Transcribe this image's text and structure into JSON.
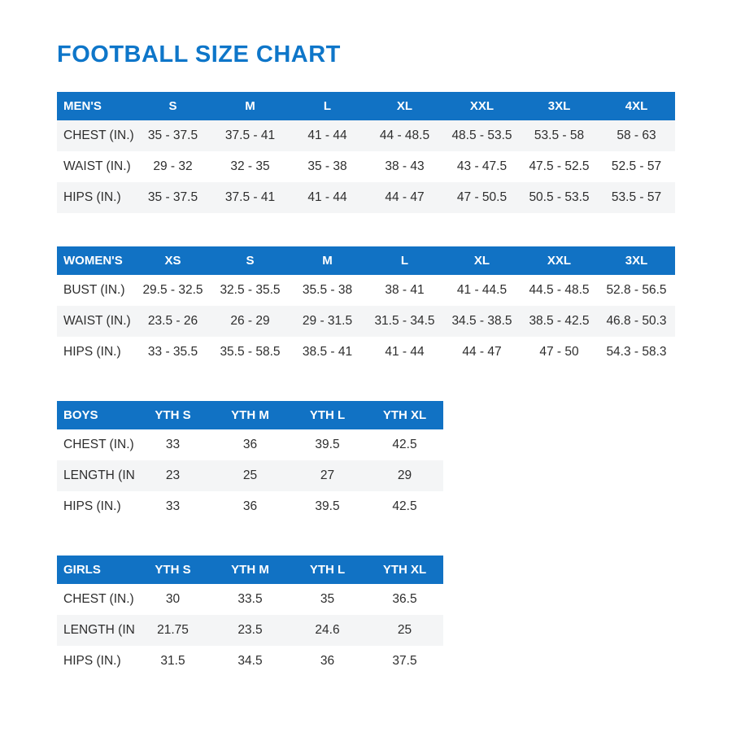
{
  "page": {
    "title": "FOOTBALL SIZE CHART"
  },
  "colors": {
    "accent_blue": "#1172C4",
    "title_blue": "#0E76C9",
    "stripe_gray": "#F4F5F6",
    "text_dark": "#2E2E2E"
  },
  "tables": [
    {
      "id": "mens",
      "label": "MEN'S",
      "columns": [
        "S",
        "M",
        "L",
        "XL",
        "XXL",
        "3XL",
        "4XL"
      ],
      "rows": [
        {
          "label": "CHEST (IN.)",
          "shaded": true,
          "values": [
            "35 - 37.5",
            "37.5 - 41",
            "41 - 44",
            "44 - 48.5",
            "48.5 - 53.5",
            "53.5 - 58",
            "58 - 63"
          ]
        },
        {
          "label": "WAIST (IN.)",
          "shaded": false,
          "values": [
            "29 - 32",
            "32 - 35",
            "35 - 38",
            "38 - 43",
            "43 - 47.5",
            "47.5 - 52.5",
            "52.5 - 57"
          ]
        },
        {
          "label": "HIPS (IN.)",
          "shaded": true,
          "values": [
            "35 - 37.5",
            "37.5 - 41",
            "41 - 44",
            "44 - 47",
            "47 - 50.5",
            "50.5 - 53.5",
            "53.5 - 57"
          ]
        }
      ]
    },
    {
      "id": "womens",
      "label": "WOMEN'S",
      "columns": [
        "XS",
        "S",
        "M",
        "L",
        "XL",
        "XXL",
        "3XL"
      ],
      "rows": [
        {
          "label": "BUST (IN.)",
          "shaded": false,
          "values": [
            "29.5 - 32.5",
            "32.5 - 35.5",
            "35.5 - 38",
            "38 - 41",
            "41 - 44.5",
            "44.5 - 48.5",
            "52.8 - 56.5"
          ]
        },
        {
          "label": "WAIST (IN.)",
          "shaded": true,
          "values": [
            "23.5 - 26",
            "26 - 29",
            "29 - 31.5",
            "31.5 - 34.5",
            "34.5 - 38.5",
            "38.5 - 42.5",
            "46.8 - 50.3"
          ]
        },
        {
          "label": "HIPS (IN.)",
          "shaded": false,
          "values": [
            "33 - 35.5",
            "35.5 - 58.5",
            "38.5 - 41",
            "41 - 44",
            "44 - 47",
            "47 - 50",
            "54.3 - 58.3"
          ]
        }
      ]
    },
    {
      "id": "boys",
      "label": "BOYS",
      "columns": [
        "YTH S",
        "YTH M",
        "YTH L",
        "YTH XL"
      ],
      "rows": [
        {
          "label": "CHEST (IN.)",
          "shaded": false,
          "values": [
            "33",
            "36",
            "39.5",
            "42.5"
          ]
        },
        {
          "label": "LENGTH (IN.)",
          "shaded": true,
          "values": [
            "23",
            "25",
            "27",
            "29"
          ]
        },
        {
          "label": "HIPS (IN.)",
          "shaded": false,
          "values": [
            "33",
            "36",
            "39.5",
            "42.5"
          ]
        }
      ]
    },
    {
      "id": "girls",
      "label": "GIRLS",
      "columns": [
        "YTH S",
        "YTH M",
        "YTH L",
        "YTH XL"
      ],
      "rows": [
        {
          "label": "CHEST (IN.)",
          "shaded": false,
          "values": [
            "30",
            "33.5",
            "35",
            "36.5"
          ]
        },
        {
          "label": "LENGTH (IN.)",
          "shaded": true,
          "values": [
            "21.75",
            "23.5",
            "24.6",
            "25"
          ]
        },
        {
          "label": "HIPS (IN.)",
          "shaded": false,
          "values": [
            "31.5",
            "34.5",
            "36",
            "37.5"
          ]
        }
      ]
    }
  ]
}
